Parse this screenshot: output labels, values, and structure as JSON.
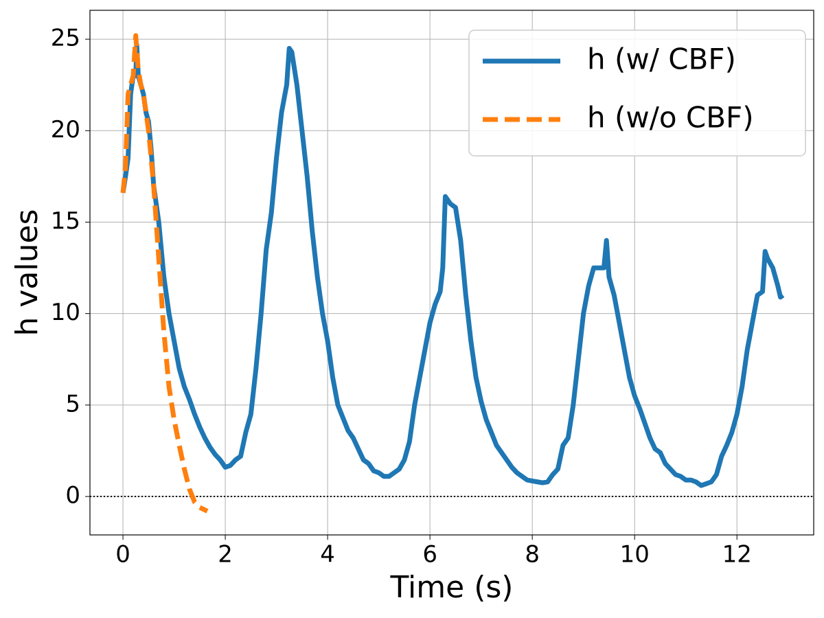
{
  "chart_data": {
    "type": "line",
    "xlabel": "Time (s)",
    "ylabel": "h values",
    "xlim": [
      -0.645,
      13.5
    ],
    "ylim": [
      -2.1,
      26.58
    ],
    "xticks": [
      0,
      2,
      4,
      6,
      8,
      10,
      12
    ],
    "yticks": [
      0,
      5,
      10,
      15,
      20,
      25
    ],
    "grid": true,
    "legend_loc": "upper right",
    "reference_line": {
      "y": 0,
      "style": "dotted",
      "color": "#000000"
    },
    "series": [
      {
        "name": "h (w/ CBF)",
        "color": "#1f77b4",
        "style": "solid",
        "x": [
          0,
          0.05,
          0.1,
          0.15,
          0.2,
          0.25,
          0.27,
          0.3,
          0.35,
          0.4,
          0.45,
          0.5,
          0.55,
          0.6,
          0.7,
          0.8,
          0.9,
          1.0,
          1.1,
          1.2,
          1.3,
          1.4,
          1.5,
          1.6,
          1.7,
          1.8,
          1.9,
          2.0,
          2.1,
          2.2,
          2.3,
          2.4,
          2.5,
          2.6,
          2.7,
          2.8,
          2.9,
          3.0,
          3.1,
          3.2,
          3.25,
          3.3,
          3.4,
          3.5,
          3.6,
          3.7,
          3.8,
          3.9,
          4.0,
          4.1,
          4.2,
          4.3,
          4.4,
          4.5,
          4.6,
          4.7,
          4.8,
          4.9,
          5.0,
          5.1,
          5.2,
          5.3,
          5.4,
          5.5,
          5.6,
          5.7,
          5.8,
          5.9,
          6.0,
          6.1,
          6.2,
          6.25,
          6.3,
          6.4,
          6.5,
          6.6,
          6.7,
          6.8,
          6.9,
          7.0,
          7.1,
          7.2,
          7.3,
          7.4,
          7.5,
          7.6,
          7.7,
          7.8,
          7.9,
          8.0,
          8.1,
          8.2,
          8.3,
          8.4,
          8.5,
          8.6,
          8.7,
          8.8,
          8.9,
          9.0,
          9.1,
          9.2,
          9.3,
          9.4,
          9.45,
          9.5,
          9.6,
          9.7,
          9.8,
          9.9,
          10.0,
          10.1,
          10.2,
          10.3,
          10.4,
          10.5,
          10.6,
          10.7,
          10.8,
          10.9,
          11.0,
          11.1,
          11.2,
          11.3,
          11.4,
          11.5,
          11.6,
          11.7,
          11.8,
          11.9,
          12.0,
          12.1,
          12.2,
          12.3,
          12.4,
          12.5,
          12.55,
          12.6,
          12.7,
          12.8,
          12.85,
          12.9
        ],
        "values": [
          16.6,
          17.5,
          18.5,
          22,
          23,
          23,
          24.7,
          23,
          22.5,
          22,
          21,
          20.5,
          19,
          17,
          15,
          12,
          10,
          8.5,
          7,
          6,
          5.3,
          4.5,
          3.8,
          3.2,
          2.7,
          2.3,
          2.0,
          1.6,
          1.7,
          2.0,
          2.2,
          3.5,
          4.5,
          7,
          10,
          13.5,
          15.5,
          18.5,
          21,
          22.5,
          24.5,
          24.3,
          22.5,
          20,
          17.5,
          14.5,
          12,
          10,
          8.5,
          6.5,
          5,
          4.3,
          3.6,
          3.2,
          2.6,
          2.0,
          1.8,
          1.4,
          1.3,
          1.1,
          1.1,
          1.3,
          1.5,
          2.0,
          3.0,
          5.0,
          6.5,
          8.0,
          9.5,
          10.5,
          11.2,
          12.5,
          16.4,
          16,
          15.8,
          14,
          11,
          8.5,
          6.5,
          5.2,
          4.2,
          3.5,
          2.8,
          2.4,
          2.0,
          1.6,
          1.3,
          1.1,
          0.9,
          0.85,
          0.8,
          0.75,
          0.8,
          1.2,
          1.5,
          2.8,
          3.2,
          5,
          7.5,
          10,
          11.5,
          12.5,
          12.5,
          12.5,
          14,
          12,
          11,
          9.5,
          8,
          6.5,
          5.5,
          4.8,
          4,
          3.2,
          2.6,
          2.4,
          1.8,
          1.5,
          1.2,
          1.1,
          0.9,
          0.9,
          0.8,
          0.6,
          0.7,
          0.8,
          1.2,
          2.2,
          2.8,
          3.5,
          4.5,
          6,
          8,
          9.5,
          11,
          11.2,
          13.4,
          13,
          12.5,
          11.5,
          10.9,
          11
        ]
      },
      {
        "name": "h (w/o CBF)",
        "color": "#ff7f0e",
        "style": "dashed",
        "x": [
          0,
          0.05,
          0.1,
          0.15,
          0.2,
          0.25,
          0.3,
          0.35,
          0.4,
          0.5,
          0.6,
          0.7,
          0.8,
          0.9,
          1.0,
          1.1,
          1.2,
          1.3,
          1.4,
          1.5,
          1.65
        ],
        "values": [
          16.6,
          18,
          22,
          22.5,
          23,
          25.2,
          23.3,
          22.5,
          22,
          20,
          17,
          13,
          9,
          6,
          4.2,
          2.8,
          1.5,
          0.4,
          -0.3,
          -0.6,
          -0.8
        ]
      }
    ]
  }
}
